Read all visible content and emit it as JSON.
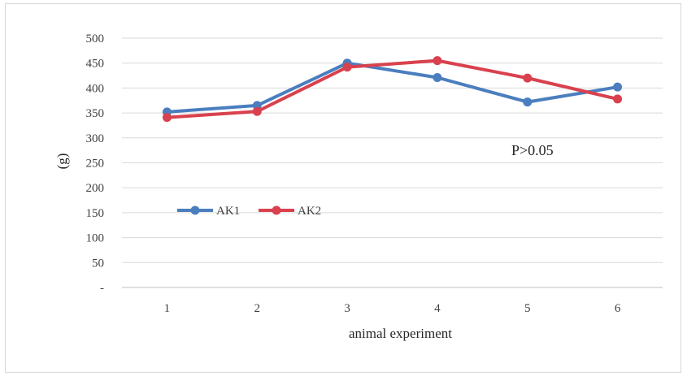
{
  "chart_data": {
    "type": "line",
    "x": [
      1,
      2,
      3,
      4,
      5,
      6
    ],
    "categories": [
      "1",
      "2",
      "3",
      "4",
      "5",
      "6"
    ],
    "series": [
      {
        "name": "AK1",
        "color": "#4a7ebf",
        "values": [
          352,
          365,
          450,
          421,
          372,
          402
        ]
      },
      {
        "name": "AK2",
        "color": "#d9414e",
        "values": [
          341,
          353,
          442,
          455,
          420,
          378
        ]
      }
    ],
    "xlabel": "animal experiment",
    "ylabel": "(g)",
    "ylim": [
      0,
      500
    ],
    "yticks": [
      0,
      50,
      100,
      150,
      200,
      250,
      300,
      350,
      400,
      450,
      500
    ],
    "ytick_labels": [
      "-",
      "50",
      "100",
      "150",
      "200",
      "250",
      "300",
      "350",
      "400",
      "450",
      "500"
    ],
    "grid": true,
    "legend": "center-left",
    "annotation": "P>0.05"
  }
}
